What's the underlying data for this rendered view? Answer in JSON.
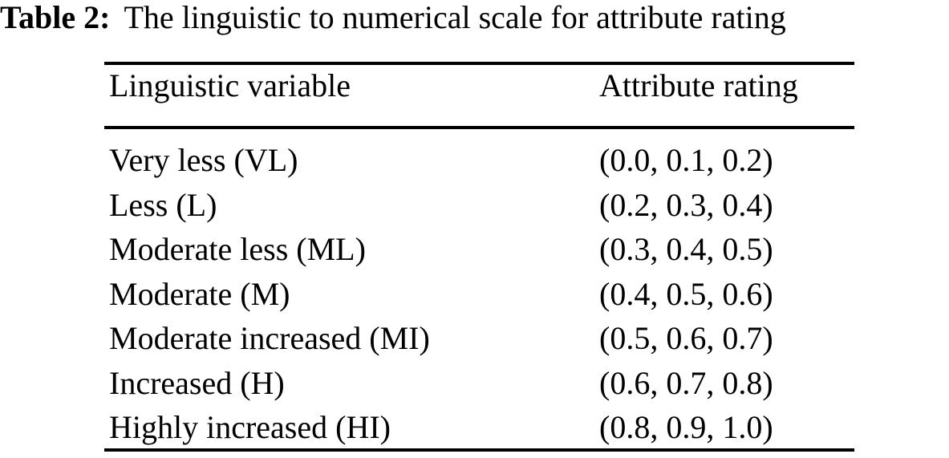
{
  "caption": {
    "label": "Table 2:",
    "text": "The linguistic to numerical scale for attribute rating"
  },
  "table": {
    "header": {
      "col1": "Linguistic variable",
      "col2": "Attribute rating"
    },
    "rows": [
      {
        "variable": "Very less (VL)",
        "rating": "(0.0, 0.1, 0.2)"
      },
      {
        "variable": "Less (L)",
        "rating": "(0.2, 0.3, 0.4)"
      },
      {
        "variable": "Moderate less (ML)",
        "rating": "(0.3, 0.4, 0.5)"
      },
      {
        "variable": "Moderate (M)",
        "rating": "(0.4, 0.5, 0.6)"
      },
      {
        "variable": "Moderate increased (MI)",
        "rating": "(0.5, 0.6, 0.7)"
      },
      {
        "variable": "Increased (H)",
        "rating": "(0.6, 0.7, 0.8)"
      },
      {
        "variable": "Highly increased (HI)",
        "rating": "(0.8, 0.9, 1.0)"
      }
    ]
  },
  "colors": {
    "text": "#000000",
    "background": "#ffffff",
    "rule": "#000000"
  }
}
